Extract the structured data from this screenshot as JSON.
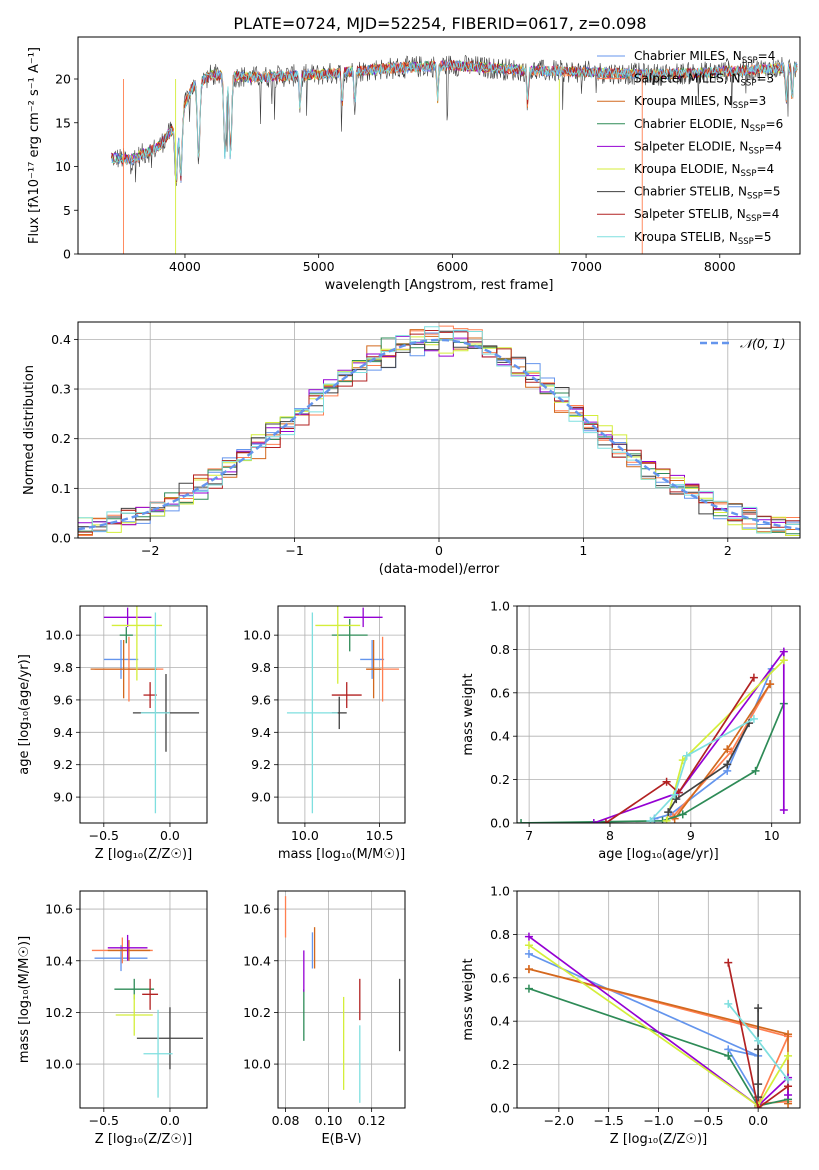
{
  "title": "PLATE=0724, MJD=52254, FIBERID=0617, z=0.098",
  "models": [
    {
      "name": "Chabrier MILES",
      "nssp": "4",
      "color": "#6495ed"
    },
    {
      "name": "Salpeter MILES",
      "nssp": "3",
      "color": "#ff7f50"
    },
    {
      "name": "Kroupa MILES",
      "nssp": "3",
      "color": "#d2691e"
    },
    {
      "name": "Chabrier ELODIE",
      "nssp": "6",
      "color": "#2e8b57"
    },
    {
      "name": "Salpeter ELODIE",
      "nssp": "4",
      "color": "#9400d3"
    },
    {
      "name": "Kroupa ELODIE",
      "nssp": "4",
      "color": "#d4ee3a"
    },
    {
      "name": "Chabrier STELIB",
      "nssp": "5",
      "color": "#404040"
    },
    {
      "name": "Salpeter STELIB",
      "nssp": "4",
      "color": "#b22222"
    },
    {
      "name": "Kroupa STELIB",
      "nssp": "5",
      "color": "#7fdfdf"
    }
  ],
  "chart_data": [
    {
      "id": "spectrum",
      "type": "line",
      "xlabel": "wavelength [Angstrom, rest frame]",
      "ylabel": "Flux [fλ10⁻¹⁷ erg cm⁻² s⁻¹ A⁻¹]",
      "xlim": [
        3200,
        8600
      ],
      "ylim": [
        0,
        24.8
      ],
      "xticks": [
        4000,
        5000,
        6000,
        7000,
        8000
      ],
      "yticks": [
        0,
        5,
        10,
        15,
        20
      ],
      "continuum": {
        "x": [
          3450,
          3600,
          3800,
          3950,
          4050,
          4200,
          4500,
          5000,
          5500,
          6000,
          6500,
          7000,
          7500,
          8000,
          8500
        ],
        "y": [
          11.0,
          10.8,
          12.2,
          15.0,
          19.0,
          20.5,
          20.2,
          20.5,
          21.2,
          21.6,
          21.0,
          20.8,
          20.5,
          20.8,
          21.3
        ]
      },
      "absorption_lines": [
        3934,
        3969,
        4102,
        4300,
        4340,
        4861,
        5175,
        5270,
        5890,
        6563,
        8498,
        8542
      ]
    },
    {
      "id": "residuals",
      "type": "histogram",
      "xlabel": "(data-model)/error",
      "ylabel": "Normed distribution",
      "xlim": [
        -2.5,
        2.5
      ],
      "ylim": [
        0,
        0.435
      ],
      "xticks": [
        -2,
        -1,
        0,
        1,
        2
      ],
      "yticks": [
        0.0,
        0.1,
        0.2,
        0.3,
        0.4
      ],
      "grid": true,
      "legend": {
        "position": "top-right",
        "label": "𝒩(0, 1)"
      },
      "gaussian": {
        "mu": 0,
        "sigma": 1,
        "color": "#6495ed"
      }
    },
    {
      "id": "age-vs-Z",
      "type": "errorbar",
      "xlabel": "Z [log₁₀(Z/Z☉)]",
      "ylabel": "age  [log₁₀(age/yr)]",
      "xlim": [
        -0.68,
        0.28
      ],
      "ylim": [
        8.84,
        10.18
      ],
      "xticks": [
        -0.5,
        0.0
      ],
      "yticks": [
        9.0,
        9.2,
        9.4,
        9.6,
        9.8,
        10.0
      ],
      "points": [
        {
          "model": 0,
          "x": -0.37,
          "y": 9.85,
          "xerr": 0.13,
          "yerr": 0.12
        },
        {
          "model": 1,
          "x": -0.31,
          "y": 9.79,
          "xerr": 0.26,
          "yerr": 0.2
        },
        {
          "model": 2,
          "x": -0.35,
          "y": 9.79,
          "xerr": 0.25,
          "yerr": 0.18
        },
        {
          "model": 3,
          "x": -0.33,
          "y": 10.0,
          "xerr": 0.05,
          "yerr": 0.05
        },
        {
          "model": 4,
          "x": -0.32,
          "y": 10.11,
          "xerr": 0.18,
          "yerr": 0.06
        },
        {
          "model": 5,
          "x": -0.25,
          "y": 10.06,
          "xerr": 0.19,
          "yerr": 0.34
        },
        {
          "model": 6,
          "x": -0.03,
          "y": 9.52,
          "xerr": 0.25,
          "yerr": 0.24
        },
        {
          "model": 7,
          "x": -0.15,
          "y": 9.63,
          "xerr": 0.05,
          "yerr": 0.08
        },
        {
          "model": 8,
          "x": -0.11,
          "y": 9.52,
          "xerr": 0.11,
          "yerr": 0.62
        }
      ]
    },
    {
      "id": "age-vs-mass",
      "type": "errorbar",
      "xlabel": "mass [log₁₀(M/M☉)]",
      "ylabel": "",
      "xlim": [
        9.82,
        10.67
      ],
      "ylim": [
        8.84,
        10.18
      ],
      "xticks": [
        10.0,
        10.5
      ],
      "yticks": [
        9.0,
        9.2,
        9.4,
        9.6,
        9.8,
        10.0
      ],
      "points": [
        {
          "model": 0,
          "x": 10.45,
          "y": 9.85,
          "xerr": 0.08,
          "yerr": 0.12
        },
        {
          "model": 1,
          "x": 10.52,
          "y": 9.79,
          "xerr": 0.11,
          "yerr": 0.2
        },
        {
          "model": 2,
          "x": 10.46,
          "y": 9.79,
          "xerr": 0.05,
          "yerr": 0.18
        },
        {
          "model": 3,
          "x": 10.3,
          "y": 10.0,
          "xerr": 0.12,
          "yerr": 0.1
        },
        {
          "model": 4,
          "x": 10.39,
          "y": 10.11,
          "xerr": 0.13,
          "yerr": 0.06
        },
        {
          "model": 5,
          "x": 10.22,
          "y": 10.06,
          "xerr": 0.15,
          "yerr": 0.36
        },
        {
          "model": 6,
          "x": 10.23,
          "y": 9.52,
          "xerr": 0.05,
          "yerr": 0.1
        },
        {
          "model": 7,
          "x": 10.28,
          "y": 9.63,
          "xerr": 0.1,
          "yerr": 0.08
        },
        {
          "model": 8,
          "x": 10.05,
          "y": 9.52,
          "xerr": 0.17,
          "yerr": 0.62
        }
      ]
    },
    {
      "id": "mass-weight-vs-age",
      "type": "line",
      "xlabel": "age  [log₁₀(age/yr)]",
      "ylabel": "mass weight",
      "xlim": [
        6.85,
        10.35
      ],
      "ylim": [
        0,
        1
      ],
      "xticks": [
        7,
        8,
        9,
        10
      ],
      "yticks": [
        0.0,
        0.2,
        0.4,
        0.6,
        0.8,
        1.0
      ],
      "grid": true,
      "series": [
        {
          "model": 0,
          "x": [
            8.55,
            8.75,
            9.45,
            10.0
          ],
          "y": [
            0.02,
            0.04,
            0.24,
            0.71
          ]
        },
        {
          "model": 1,
          "x": [
            8.78,
            9.5,
            9.98
          ],
          "y": [
            0.03,
            0.33,
            0.64
          ]
        },
        {
          "model": 2,
          "x": [
            8.8,
            9.45,
            9.98
          ],
          "y": [
            0.02,
            0.34,
            0.64
          ]
        },
        {
          "model": 3,
          "x": [
            6.9,
            8.65,
            8.9,
            9.8,
            10.15
          ],
          "y": [
            0.0,
            0.01,
            0.04,
            0.24,
            0.55
          ]
        },
        {
          "model": 4,
          "x": [
            7.8,
            8.85,
            10.15,
            10.15
          ],
          "y": [
            0.0,
            0.14,
            0.79,
            0.06
          ]
        },
        {
          "model": 5,
          "x": [
            8.7,
            8.9,
            10.15
          ],
          "y": [
            0.01,
            0.29,
            0.75
          ]
        },
        {
          "model": 6,
          "x": [
            8.72,
            8.82,
            9.45,
            9.72
          ],
          "y": [
            0.05,
            0.11,
            0.27,
            0.46
          ]
        },
        {
          "model": 7,
          "x": [
            7.95,
            8.7,
            8.85,
            9.78
          ],
          "y": [
            0.0,
            0.19,
            0.14,
            0.67
          ]
        },
        {
          "model": 8,
          "x": [
            8.5,
            8.8,
            8.95,
            9.78
          ],
          "y": [
            0.01,
            0.13,
            0.31,
            0.48
          ]
        }
      ]
    },
    {
      "id": "mass-vs-Z",
      "type": "errorbar",
      "xlabel": "Z [log₁₀(Z/Z☉)]",
      "ylabel": "mass [log₁₀(M/M☉)]",
      "xlim": [
        -0.68,
        0.28
      ],
      "ylim": [
        9.83,
        10.67
      ],
      "xticks": [
        -0.5,
        0.0
      ],
      "yticks": [
        10.0,
        10.2,
        10.4,
        10.6
      ],
      "points": [
        {
          "model": 0,
          "x": -0.37,
          "y": 10.41,
          "xerr": 0.2,
          "yerr": 0.05
        },
        {
          "model": 1,
          "x": -0.36,
          "y": 10.44,
          "xerr": 0.23,
          "yerr": 0.05
        },
        {
          "model": 2,
          "x": -0.31,
          "y": 10.44,
          "xerr": 0.16,
          "yerr": 0.04
        },
        {
          "model": 3,
          "x": -0.27,
          "y": 10.29,
          "xerr": 0.15,
          "yerr": 0.04
        },
        {
          "model": 4,
          "x": -0.32,
          "y": 10.45,
          "xerr": 0.15,
          "yerr": 0.05
        },
        {
          "model": 5,
          "x": -0.27,
          "y": 10.19,
          "xerr": 0.14,
          "yerr": 0.08
        },
        {
          "model": 6,
          "x": 0.0,
          "y": 10.1,
          "xerr": 0.25,
          "yerr": 0.12
        },
        {
          "model": 7,
          "x": -0.15,
          "y": 10.27,
          "xerr": 0.06,
          "yerr": 0.06
        },
        {
          "model": 8,
          "x": -0.09,
          "y": 10.04,
          "xerr": 0.11,
          "yerr": 0.17
        }
      ]
    },
    {
      "id": "mass-vs-EBV",
      "type": "errorbar",
      "xlabel": "E(B-V)",
      "ylabel": "",
      "xlim": [
        0.0765,
        0.1355
      ],
      "ylim": [
        9.83,
        10.67
      ],
      "xticks": [
        0.08,
        0.1,
        0.12
      ],
      "yticks": [
        10.0,
        10.2,
        10.4,
        10.6
      ],
      "points": [
        {
          "model": 0,
          "x": 0.0925,
          "y": 10.44,
          "xerr": 0,
          "yerr": 0.07
        },
        {
          "model": 1,
          "x": 0.08,
          "y": 10.57,
          "xerr": 0,
          "yerr": 0.08
        },
        {
          "model": 2,
          "x": 0.0935,
          "y": 10.45,
          "xerr": 0,
          "yerr": 0.08
        },
        {
          "model": 3,
          "x": 0.0885,
          "y": 10.19,
          "xerr": 0,
          "yerr": 0.1
        },
        {
          "model": 4,
          "x": 0.0885,
          "y": 10.36,
          "xerr": 0,
          "yerr": 0.08
        },
        {
          "model": 5,
          "x": 0.107,
          "y": 10.08,
          "xerr": 0,
          "yerr": 0.18
        },
        {
          "model": 6,
          "x": 0.133,
          "y": 10.19,
          "xerr": 0,
          "yerr": 0.14
        },
        {
          "model": 7,
          "x": 0.1145,
          "y": 10.25,
          "xerr": 0,
          "yerr": 0.08
        },
        {
          "model": 8,
          "x": 0.1145,
          "y": 10.0,
          "xerr": 0,
          "yerr": 0.15
        }
      ]
    },
    {
      "id": "mass-weight-vs-Z",
      "type": "line",
      "xlabel": "Z [log₁₀(Z/Z☉)]",
      "ylabel": "mass weight",
      "xlim": [
        -2.42,
        0.42
      ],
      "ylim": [
        0,
        1
      ],
      "xticks": [
        -2.0,
        -1.5,
        -1.0,
        -0.5,
        0.0
      ],
      "yticks": [
        0.0,
        0.2,
        0.4,
        0.6,
        0.8,
        1.0
      ],
      "grid": true,
      "series": [
        {
          "model": 0,
          "x": [
            -2.3,
            0.0,
            -0.3,
            0.0
          ],
          "y": [
            0.71,
            0.24,
            0.27,
            0.04
          ]
        },
        {
          "model": 1,
          "x": [
            -2.3,
            0.3,
            0.0,
            0.3
          ],
          "y": [
            0.64,
            0.33,
            0.02,
            0.03
          ]
        },
        {
          "model": 2,
          "x": [
            -2.3,
            0.3,
            0.3
          ],
          "y": [
            0.64,
            0.34,
            0.02
          ]
        },
        {
          "model": 3,
          "x": [
            -2.3,
            -0.3,
            0.0,
            0.3
          ],
          "y": [
            0.55,
            0.24,
            0.01,
            0.04
          ]
        },
        {
          "model": 4,
          "x": [
            -2.3,
            0.0,
            0.3,
            0.3
          ],
          "y": [
            0.79,
            0.01,
            0.14,
            0.06
          ]
        },
        {
          "model": 5,
          "x": [
            -2.3,
            0.0,
            0.3
          ],
          "y": [
            0.75,
            0.01,
            0.24
          ]
        },
        {
          "model": 6,
          "x": [
            0.0,
            0.0,
            0.0,
            0.0
          ],
          "y": [
            0.46,
            0.11,
            0.05,
            0.27
          ]
        },
        {
          "model": 7,
          "x": [
            -0.3,
            0.0,
            0.3
          ],
          "y": [
            0.67,
            0.0,
            0.1
          ]
        },
        {
          "model": 8,
          "x": [
            -0.3,
            0.0,
            0.3
          ],
          "y": [
            0.48,
            0.31,
            0.13
          ]
        }
      ]
    }
  ]
}
